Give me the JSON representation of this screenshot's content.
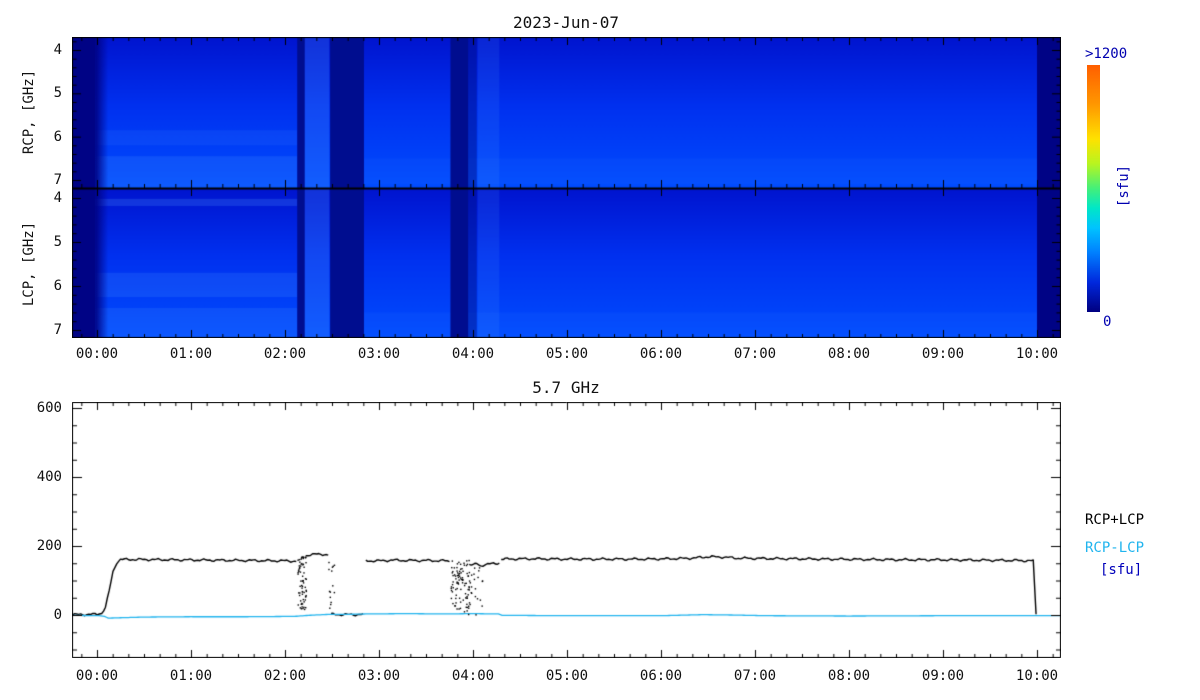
{
  "chart_data": [
    {
      "type": "heatmap",
      "title": "2023-Jun-07",
      "x_tick_labels": [
        "00:00",
        "01:00",
        "02:00",
        "03:00",
        "04:00",
        "05:00",
        "06:00",
        "07:00",
        "08:00",
        "09:00",
        "10:00"
      ],
      "x_tick_hours": [
        0,
        1,
        2,
        3,
        4,
        5,
        6,
        7,
        8,
        9,
        10
      ],
      "x_range_hours": [
        -0.266,
        10.255
      ],
      "panels": [
        {
          "name": "RCP",
          "ylabel": "RCP, [GHz]",
          "y_tick_labels": [
            "4",
            "5",
            "6",
            "7"
          ],
          "y_tick_values": [
            4,
            5,
            6,
            7
          ],
          "f_minor_step": 0.2
        },
        {
          "name": "LCP",
          "ylabel": "LCP, [GHz]",
          "y_tick_labels": [
            "4",
            "5",
            "6",
            "7"
          ],
          "y_tick_values": [
            4,
            5,
            6,
            7
          ],
          "f_minor_step": 0.2
        }
      ],
      "base_gradient": [
        "#0014cf",
        "#0030ef",
        "#014cff"
      ],
      "band_colors": {
        "nodata": "#000385",
        "dark": "#000d8f",
        "dim": "rgba(0,13,130,0.45)",
        "bright": "rgba(80,160,255,0.22)",
        "bright-weak": "rgba(80,160,255,0.13)"
      },
      "bands": [
        {
          "t0": -0.27,
          "t1": -0.02,
          "type": "nodata",
          "fade": 0.14
        },
        {
          "t0": 2.13,
          "t1": 2.21,
          "type": "dark"
        },
        {
          "t0": 2.21,
          "t1": 2.47,
          "type": "bright"
        },
        {
          "t0": 2.48,
          "t1": 2.84,
          "type": "dark"
        },
        {
          "t0": 3.76,
          "t1": 3.95,
          "type": "dark"
        },
        {
          "t0": 3.95,
          "t1": 4.04,
          "type": "dim"
        },
        {
          "t0": 4.05,
          "t1": 4.28,
          "type": "bright-weak"
        },
        {
          "t0": 10.0,
          "t1": 10.26,
          "type": "nodata"
        }
      ],
      "strata": [
        {
          "panel": 0,
          "f0": 5.85,
          "f1": 6.2,
          "t0": -0.02,
          "t1": 2.13,
          "alpha": 0.1
        },
        {
          "panel": 0,
          "f0": 6.45,
          "f1": 7.18,
          "t0": -0.02,
          "t1": 2.13,
          "alpha": 0.16
        },
        {
          "panel": 0,
          "f0": 6.5,
          "f1": 7.1,
          "t0": 2.84,
          "t1": 10.0,
          "alpha": 0.05
        },
        {
          "panel": 1,
          "f0": 4.02,
          "f1": 4.18,
          "t0": -0.02,
          "t1": 2.13,
          "alpha": 0.2
        },
        {
          "panel": 1,
          "f0": 5.7,
          "f1": 6.25,
          "t0": -0.02,
          "t1": 2.13,
          "alpha": 0.16
        },
        {
          "panel": 1,
          "f0": 6.5,
          "f1": 7.18,
          "t0": -0.02,
          "t1": 2.13,
          "alpha": 0.14
        },
        {
          "panel": 1,
          "f0": 6.6,
          "f1": 7.18,
          "t0": 2.84,
          "t1": 10.0,
          "alpha": 0.06
        }
      ],
      "colorbar": {
        "top_label": ">1200",
        "bottom_label": "0",
        "unit_label": "[sfu]",
        "label_color": "#0000b0",
        "stops": [
          [
            0.0,
            "#ff5f00"
          ],
          [
            0.16,
            "#ff9800"
          ],
          [
            0.3,
            "#ffe200"
          ],
          [
            0.4,
            "#b8f520"
          ],
          [
            0.5,
            "#44f07a"
          ],
          [
            0.58,
            "#00e7c8"
          ],
          [
            0.66,
            "#00c3ff"
          ],
          [
            0.76,
            "#0080ff"
          ],
          [
            0.88,
            "#0028dd"
          ],
          [
            1.0,
            "#000080"
          ]
        ]
      }
    },
    {
      "type": "line",
      "title": "5.7 GHz",
      "ylim": [
        -125,
        620
      ],
      "y_tick_values": [
        0,
        200,
        400,
        600
      ],
      "y_tick_labels": [
        "0",
        "200",
        "400",
        "600"
      ],
      "y_minor_step": 50,
      "x_tick_labels": [
        "00:00",
        "01:00",
        "02:00",
        "03:00",
        "04:00",
        "05:00",
        "06:00",
        "07:00",
        "08:00",
        "09:00",
        "10:00"
      ],
      "x_tick_hours": [
        0,
        1,
        2,
        3,
        4,
        5,
        6,
        7,
        8,
        9,
        10
      ],
      "legend": [
        {
          "label": "RCP+LCP",
          "color": "#000000"
        },
        {
          "label": "RCP-LCP",
          "color": "#20b4ee"
        },
        {
          "label": "[sfu]",
          "color": "#0000bb"
        }
      ],
      "series": [
        {
          "name": "RCP+LCP",
          "color": "#000000",
          "width": 1.4,
          "noise": 1.1,
          "points": [
            [
              -0.26,
              1
            ],
            [
              0,
              2
            ],
            [
              0.05,
              6
            ],
            [
              0.09,
              22
            ],
            [
              0.13,
              70
            ],
            [
              0.17,
              125
            ],
            [
              0.21,
              152
            ],
            [
              0.25,
              161
            ],
            [
              0.4,
              161
            ],
            [
              0.8,
              160
            ],
            [
              1.2,
              159
            ],
            [
              1.6,
              158
            ],
            [
              2.0,
              157
            ],
            [
              2.12,
              156
            ],
            null,
            [
              2.22,
              172
            ],
            [
              2.27,
              175
            ],
            [
              2.34,
              176
            ],
            [
              2.42,
              176
            ],
            [
              2.46,
              174
            ],
            null,
            [
              2.49,
              2
            ],
            [
              2.6,
              1
            ],
            [
              2.75,
              1
            ],
            [
              2.83,
              2
            ],
            null,
            [
              2.86,
              157
            ],
            [
              3.0,
              157
            ],
            [
              3.15,
              159
            ],
            [
              3.3,
              158
            ],
            [
              3.5,
              158
            ],
            [
              3.7,
              157
            ],
            [
              3.75,
              156
            ],
            null,
            [
              3.96,
              148
            ],
            [
              4.0,
              144
            ],
            [
              4.04,
              149
            ],
            [
              4.08,
              142
            ],
            [
              4.13,
              147
            ],
            [
              4.18,
              148
            ],
            [
              4.24,
              149
            ],
            [
              4.28,
              151
            ],
            null,
            [
              4.3,
              162
            ],
            [
              4.6,
              163
            ],
            [
              5.0,
              162
            ],
            [
              5.4,
              162
            ],
            [
              5.8,
              162
            ],
            [
              6.1,
              163
            ],
            [
              6.35,
              165
            ],
            [
              6.5,
              169
            ],
            [
              6.65,
              168
            ],
            [
              6.8,
              165
            ],
            [
              7.0,
              164
            ],
            [
              7.4,
              163
            ],
            [
              7.8,
              162
            ],
            [
              8.2,
              161
            ],
            [
              8.6,
              160
            ],
            [
              9.0,
              160
            ],
            [
              9.4,
              159
            ],
            [
              9.8,
              158
            ],
            [
              9.96,
              157
            ],
            [
              9.99,
              2
            ]
          ]
        },
        {
          "name": "RCP-LCP",
          "color": "#20b4ee",
          "width": 1.3,
          "noise": 0,
          "points": [
            [
              -0.26,
              -1
            ],
            [
              0.02,
              -2
            ],
            [
              0.08,
              -4
            ],
            [
              0.12,
              -9
            ],
            [
              0.25,
              -8
            ],
            [
              0.5,
              -6
            ],
            [
              1.0,
              -5
            ],
            [
              1.6,
              -5
            ],
            [
              2.1,
              -4
            ],
            [
              2.25,
              -1
            ],
            [
              2.48,
              2
            ],
            [
              2.7,
              2
            ],
            [
              2.86,
              3
            ],
            [
              3.3,
              4
            ],
            [
              3.7,
              3
            ],
            [
              4.0,
              4
            ],
            [
              4.27,
              3
            ],
            [
              4.31,
              -1
            ],
            [
              5.0,
              -2
            ],
            [
              6.0,
              -2
            ],
            [
              6.45,
              1
            ],
            [
              6.75,
              0
            ],
            [
              7.1,
              -2
            ],
            [
              8.0,
              -3
            ],
            [
              9.0,
              -2
            ],
            [
              9.9,
              -2
            ],
            [
              10.25,
              -2
            ]
          ]
        }
      ],
      "dropouts": [
        {
          "t0": 2.13,
          "t1": 2.22,
          "count": 70,
          "vmax": 172
        },
        {
          "t0": 2.46,
          "t1": 2.52,
          "count": 14,
          "vmax": 176
        },
        {
          "t0": 3.76,
          "t1": 3.96,
          "count": 95,
          "vmax": 160
        },
        {
          "t0": 3.96,
          "t1": 4.1,
          "count": 20,
          "vmax": 150
        }
      ]
    }
  ]
}
